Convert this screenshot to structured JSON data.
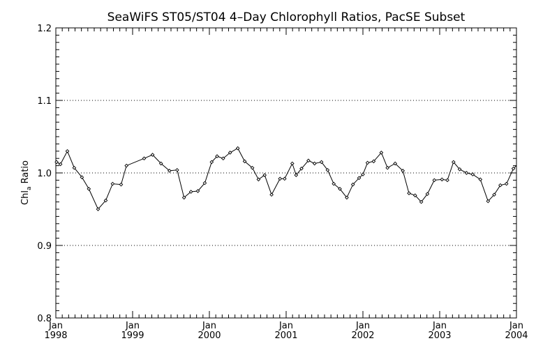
{
  "chart_data": {
    "type": "line",
    "title": "SeaWiFS ST05/ST04 4–Day Chlorophyll Ratios, PacSE Subset",
    "ylabel_main": "Chl",
    "ylabel_sub": "a",
    "ylabel_tail": " Ratio",
    "xlabel": "",
    "ylim": [
      0.8,
      1.2
    ],
    "xlim": [
      1998.0,
      2004.0
    ],
    "yticks": [
      0.8,
      0.9,
      1.0,
      1.1,
      1.2
    ],
    "ytick_labels": [
      "0.8",
      "0.9",
      "1.0",
      "1.1",
      "1.2"
    ],
    "xticks": [
      {
        "month": "Jan",
        "year": "1998",
        "x": 1998.0
      },
      {
        "month": "Jan",
        "year": "1999",
        "x": 1999.0
      },
      {
        "month": "Jan",
        "year": "2000",
        "x": 2000.0
      },
      {
        "month": "Jan",
        "year": "2001",
        "x": 2001.0
      },
      {
        "month": "Jan",
        "year": "2002",
        "x": 2002.0
      },
      {
        "month": "Jan",
        "year": "2003",
        "x": 2003.0
      },
      {
        "month": "Jan",
        "year": "2004",
        "x": 2004.0
      }
    ],
    "grid_y": [
      0.9,
      1.0,
      1.1
    ],
    "series": [
      {
        "x": [
          1998.01,
          1998.06,
          1998.15,
          1998.24,
          1998.34,
          1998.43,
          1998.55,
          1998.65,
          1998.74,
          1998.85,
          1998.92,
          1999.15,
          1999.26,
          1999.37,
          1999.48,
          1999.58,
          1999.67,
          1999.76,
          1999.85,
          1999.94,
          2000.03,
          2000.1,
          2000.18,
          2000.27,
          2000.37,
          2000.46,
          2000.56,
          2000.64,
          2000.72,
          2000.81,
          2000.92,
          2000.98,
          2001.08,
          2001.13,
          2001.2,
          2001.29,
          2001.37,
          2001.46,
          2001.54,
          2001.62,
          2001.7,
          2001.79,
          2001.87,
          2001.95,
          2002.0,
          2002.06,
          2002.14,
          2002.24,
          2002.32,
          2002.42,
          2002.52,
          2002.6,
          2002.68,
          2002.76,
          2002.84,
          2002.93,
          2003.03,
          2003.1,
          2003.18,
          2003.26,
          2003.35,
          2003.43,
          2003.53,
          2003.63,
          2003.71,
          2003.79,
          2003.87,
          2003.96
        ],
        "y": [
          1.015,
          1.012,
          1.03,
          1.007,
          0.994,
          0.978,
          0.95,
          0.962,
          0.985,
          0.984,
          1.01,
          1.02,
          1.025,
          1.013,
          1.003,
          1.004,
          0.966,
          0.974,
          0.975,
          0.986,
          1.015,
          1.023,
          1.02,
          1.028,
          1.034,
          1.016,
          1.007,
          0.991,
          0.997,
          0.97,
          0.992,
          0.992,
          1.013,
          0.997,
          1.006,
          1.017,
          1.013,
          1.015,
          1.004,
          0.985,
          0.978,
          0.966,
          0.984,
          0.993,
          0.998,
          1.014,
          1.016,
          1.028,
          1.007,
          1.013,
          1.003,
          0.972,
          0.969,
          0.96,
          0.971,
          0.99,
          0.991,
          0.99,
          1.015,
          1.005,
          1.0,
          0.998,
          0.991,
          0.961,
          0.97,
          0.983,
          0.985,
          1.006
        ]
      }
    ]
  }
}
